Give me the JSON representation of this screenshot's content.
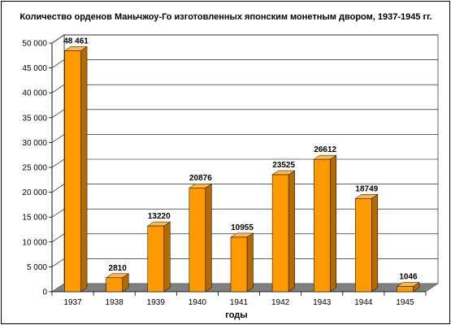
{
  "chart_data": {
    "type": "bar",
    "title": "Количество орденов  Маньчжоу-Го изготовленных японским монетным двором, 1937-1945 гг.",
    "xlabel": "годы",
    "ylabel": "",
    "categories": [
      "1937",
      "1938",
      "1939",
      "1940",
      "1941",
      "1942",
      "1943",
      "1944",
      "1945"
    ],
    "values": [
      48461,
      2810,
      13220,
      20876,
      10955,
      23525,
      26612,
      18749,
      1046
    ],
    "data_labels": [
      "48 461",
      "2810",
      "13220",
      "20876",
      "10955",
      "23525",
      "26612",
      "18749",
      "1046"
    ],
    "ylim": [
      0,
      50000
    ],
    "yticks": [
      0,
      5000,
      10000,
      15000,
      20000,
      25000,
      30000,
      35000,
      40000,
      45000,
      50000
    ],
    "ytick_labels": [
      "0",
      "5 000",
      "10 000",
      "15 000",
      "20 000",
      "25 000",
      "30 000",
      "35 000",
      "40 000",
      "45 000",
      "50 000"
    ],
    "grid": true,
    "legend": "none",
    "colors": {
      "bar_front": "#FF9900",
      "bar_side": "#B36B00",
      "bar_top": "#FFB84D",
      "floor": "#808080",
      "wall": "#FFFFFF",
      "grid": "#000000"
    }
  }
}
